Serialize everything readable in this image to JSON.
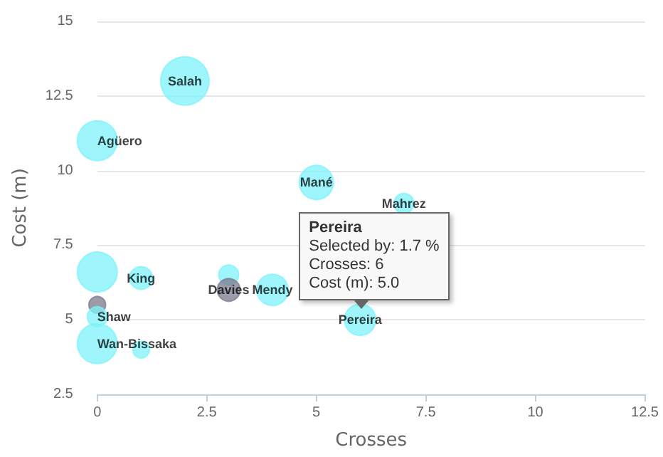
{
  "chart_data": {
    "type": "bubble",
    "xlabel": "Crosses",
    "ylabel": "Cost (m)",
    "x": [
      2,
      0,
      5,
      7,
      1,
      0,
      3,
      3,
      4,
      6,
      0,
      0,
      0,
      1
    ],
    "values": [
      13,
      11,
      9.6,
      8.9,
      6.4,
      6.6,
      6.5,
      6,
      6,
      5,
      5.5,
      5.1,
      4.2,
      4
    ],
    "sizes": [
      1,
      0.68,
      0.5,
      0.17,
      0.22,
      0.68,
      0.17,
      0.22,
      0.42,
      0.42,
      0.12,
      0.17,
      0.68,
      0.12
    ],
    "colors": [
      "#7df3fb",
      "#7df3fb",
      "#7df3fb",
      "#7df3fb",
      "#7df3fb",
      "#7df3fb",
      "#7df3fb",
      "#7a7a8c",
      "#7df3fb",
      "#7df3fb",
      "#7a7a8c",
      "#7df3fb",
      "#7df3fb",
      "#7df3fb"
    ],
    "value_labels": [
      "Salah",
      "Agüero",
      "Mané",
      "Mahrez",
      "King",
      null,
      null,
      "Davies",
      "Mendy",
      "Pereira",
      null,
      "Shaw",
      "Wan-Bissaka",
      null
    ],
    "xlim": [
      0,
      12.5
    ],
    "xticks": [
      0,
      2.5,
      5,
      7.5,
      10,
      12.5
    ],
    "ylim": [
      2.5,
      15
    ],
    "yticks": [
      2.5,
      5,
      7.5,
      10,
      12.5,
      15
    ],
    "grid": "y",
    "annotations": [
      {
        "text": "Pereira\nSelected by: 1.7 %\nCrosses: 6\nCost (m): 5.0",
        "x": 6,
        "y": 5
      }
    ]
  }
}
